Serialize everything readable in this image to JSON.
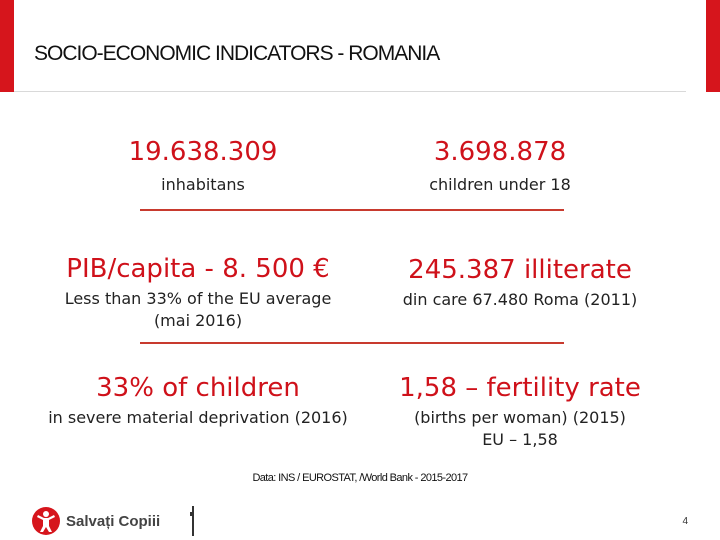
{
  "title": "SOCIO-ECONOMIC INDICATORS - ROMANIA",
  "stats": [
    {
      "value": "19.638.309",
      "lines": [
        "inhabitans"
      ]
    },
    {
      "value": "3.698.878",
      "lines": [
        "children under 18"
      ]
    },
    {
      "value": "PIB/capita -  8. 500 €",
      "lines": [
        "Less than 33% of the EU average",
        "(mai 2016)"
      ]
    },
    {
      "value": "245.387  illiterate",
      "lines": [
        "din care 67.480 Roma (2011)"
      ]
    },
    {
      "value": "33% of children",
      "lines": [
        "in severe material deprivation (2016)"
      ]
    },
    {
      "value": "1,58  – fertility rate",
      "lines": [
        "(births per woman) (2015)",
        "EU – 1,58"
      ]
    }
  ],
  "source": "Data: INS / EUROSTAT, /World Bank - 2015-2017",
  "logo": {
    "name": "Salvați Copiii",
    "icon": "child-figure-icon",
    "color": "#d6151c"
  },
  "page_number": "4",
  "colors": {
    "accent": "#d6151c",
    "divider": "#c83a2e"
  }
}
